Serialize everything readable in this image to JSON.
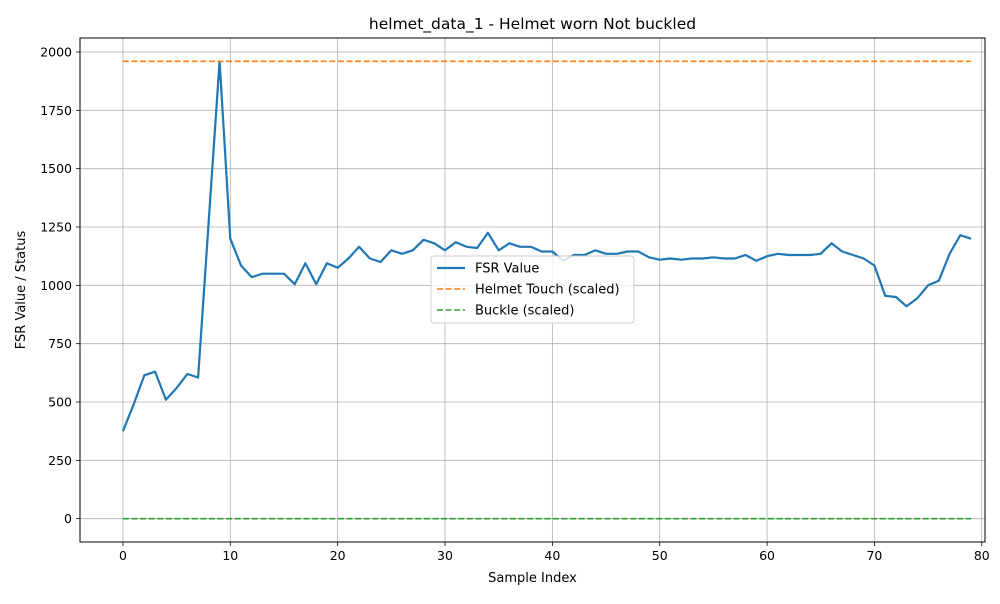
{
  "chart_data": {
    "type": "line",
    "title": "helmet_data_1 - Helmet worn Not buckled",
    "xlabel": "Sample Index",
    "ylabel": "FSR Value / Status",
    "xlim": [
      -4,
      80.3
    ],
    "ylim": [
      -100,
      2060
    ],
    "xticks": [
      0,
      10,
      20,
      30,
      40,
      50,
      60,
      70,
      80
    ],
    "yticks": [
      0,
      250,
      500,
      750,
      1000,
      1250,
      1500,
      1750,
      2000
    ],
    "grid": true,
    "legend_position": "center",
    "series": [
      {
        "name": "FSR Value",
        "style": "solid",
        "color": "#1f77b4",
        "x": [
          0,
          1,
          2,
          3,
          4,
          5,
          6,
          7,
          8,
          9,
          10,
          11,
          12,
          13,
          14,
          15,
          16,
          17,
          18,
          19,
          20,
          21,
          22,
          23,
          24,
          25,
          26,
          27,
          28,
          29,
          30,
          31,
          32,
          33,
          34,
          35,
          36,
          37,
          38,
          39,
          40,
          41,
          42,
          43,
          44,
          45,
          46,
          47,
          48,
          49,
          50,
          51,
          52,
          53,
          54,
          55,
          56,
          57,
          58,
          59,
          60,
          61,
          62,
          63,
          64,
          65,
          66,
          67,
          68,
          69,
          70,
          71,
          72,
          73,
          74,
          75,
          76,
          77,
          78,
          79
        ],
        "values": [
          375,
          490,
          615,
          630,
          510,
          560,
          620,
          605,
          1280,
          1960,
          1200,
          1085,
          1035,
          1050,
          1050,
          1050,
          1005,
          1095,
          1005,
          1095,
          1075,
          1115,
          1165,
          1115,
          1100,
          1150,
          1135,
          1150,
          1195,
          1180,
          1150,
          1185,
          1165,
          1160,
          1225,
          1150,
          1180,
          1165,
          1165,
          1145,
          1145,
          1105,
          1130,
          1130,
          1150,
          1135,
          1135,
          1145,
          1145,
          1120,
          1110,
          1115,
          1110,
          1115,
          1115,
          1120,
          1115,
          1115,
          1130,
          1105,
          1125,
          1135,
          1130,
          1130,
          1130,
          1135,
          1180,
          1145,
          1130,
          1115,
          1085,
          955,
          950,
          910,
          945,
          1000,
          1020,
          1135,
          1215,
          1200
        ]
      },
      {
        "name": "Helmet Touch (scaled)",
        "style": "dashed",
        "color": "#ff7f0e",
        "x": [
          0,
          79
        ],
        "values": [
          1960,
          1960
        ]
      },
      {
        "name": "Buckle (scaled)",
        "style": "dashed",
        "color": "#2ca02c",
        "x": [
          0,
          79
        ],
        "values": [
          0,
          0
        ]
      }
    ]
  }
}
